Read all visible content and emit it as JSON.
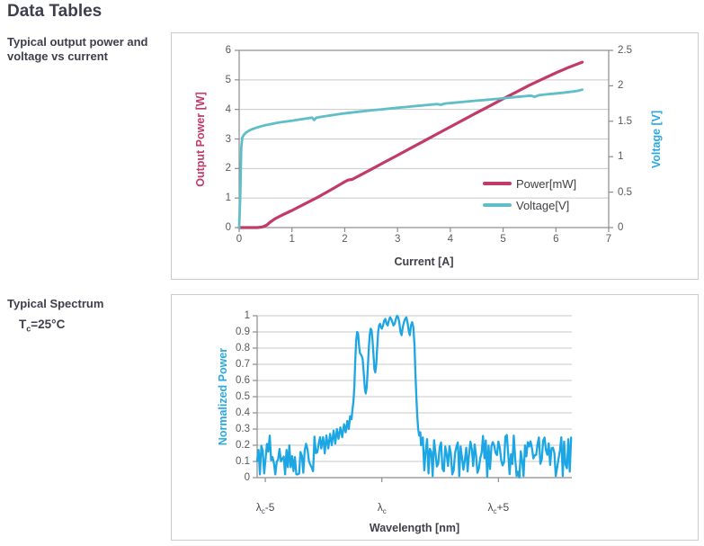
{
  "page": {
    "title": "Data Tables",
    "background": "#FFFFFF",
    "heading_color": "#3E3F4C"
  },
  "captions": {
    "chart1": "Typical output power and\nvoltage vs current",
    "chart2_title": "Typical Spectrum",
    "chart2_condition": {
      "base": "T",
      "sub": "c",
      "suffix": "=25°C"
    }
  },
  "colors": {
    "power_line": "#C23A68",
    "voltage_line": "#5FBEC7",
    "blue_axis": "#29A8E0",
    "spectrum_line": "#1CA6E3",
    "tick_text": "#595959",
    "dark_axis_text": "#3F4048",
    "gridline": "#C9C9C9",
    "axis_line": "#8C8C8C",
    "panel_border": "#C9CBCE"
  },
  "chart_data": [
    {
      "type": "line",
      "name": "output-power-and-voltage-vs-current",
      "x_axis": {
        "label": "Current [A]",
        "min": 0,
        "max": 7,
        "ticks": [
          "0",
          "1",
          "2",
          "3",
          "4",
          "5",
          "6",
          "7"
        ],
        "tick_values": [
          0,
          1,
          2,
          3,
          4,
          5,
          6,
          7
        ]
      },
      "y_left": {
        "label": "Output Power [W]",
        "min": 0,
        "max": 6,
        "ticks": [
          "0",
          "1",
          "2",
          "3",
          "4",
          "5",
          "6"
        ],
        "tick_values": [
          0,
          1,
          2,
          3,
          4,
          5,
          6
        ],
        "color": "#C23A68"
      },
      "y_right": {
        "label": "Voltage [V]",
        "min": 0,
        "max": 2.5,
        "ticks": [
          "0",
          "0.5",
          "1",
          "1.5",
          "2",
          "2.5"
        ],
        "tick_values": [
          0,
          0.5,
          1,
          1.5,
          2,
          2.5
        ],
        "color": "#29A8E0"
      },
      "grid": true,
      "legend_position": "inside-right-bottom",
      "legend": [
        {
          "label": "Power[mW]",
          "color": "#C23A68"
        },
        {
          "label": "Voltage[V]",
          "color": "#5FBEC7"
        }
      ],
      "series": [
        {
          "name": "Power[mW]",
          "axis": "left",
          "color": "#C23A68",
          "width": 3.2,
          "points": [
            [
              0,
              0
            ],
            [
              0.35,
              0
            ],
            [
              0.44,
              0.02
            ],
            [
              0.52,
              0.08
            ],
            [
              0.6,
              0.2
            ],
            [
              0.68,
              0.3
            ],
            [
              0.8,
              0.41
            ],
            [
              1,
              0.58
            ],
            [
              1.25,
              0.81
            ],
            [
              1.5,
              1.04
            ],
            [
              1.75,
              1.29
            ],
            [
              2,
              1.55
            ],
            [
              2.07,
              1.61
            ],
            [
              2.14,
              1.63
            ],
            [
              2.3,
              1.78
            ],
            [
              2.5,
              1.97
            ],
            [
              2.75,
              2.21
            ],
            [
              3,
              2.45
            ],
            [
              3.25,
              2.69
            ],
            [
              3.5,
              2.93
            ],
            [
              3.75,
              3.17
            ],
            [
              4,
              3.41
            ],
            [
              4.25,
              3.65
            ],
            [
              4.5,
              3.89
            ],
            [
              4.75,
              4.12
            ],
            [
              5,
              4.36
            ],
            [
              5.25,
              4.59
            ],
            [
              5.5,
              4.82
            ],
            [
              5.75,
              5.03
            ],
            [
              6,
              5.24
            ],
            [
              6.25,
              5.43
            ],
            [
              6.5,
              5.6
            ]
          ]
        },
        {
          "name": "Voltage[V]",
          "axis": "right",
          "color": "#5FBEC7",
          "width": 2.8,
          "points": [
            [
              0,
              0
            ],
            [
              0.02,
              0.45
            ],
            [
              0.04,
              1.12
            ],
            [
              0.06,
              1.27
            ],
            [
              0.09,
              1.31
            ],
            [
              0.13,
              1.34
            ],
            [
              0.18,
              1.365
            ],
            [
              0.25,
              1.39
            ],
            [
              0.33,
              1.41
            ],
            [
              0.42,
              1.43
            ],
            [
              0.5,
              1.445
            ],
            [
              0.6,
              1.46
            ],
            [
              0.7,
              1.475
            ],
            [
              0.8,
              1.487
            ],
            [
              0.9,
              1.498
            ],
            [
              1,
              1.508
            ],
            [
              1.1,
              1.52
            ],
            [
              1.2,
              1.53
            ],
            [
              1.3,
              1.542
            ],
            [
              1.38,
              1.552
            ],
            [
              1.42,
              1.518
            ],
            [
              1.46,
              1.548
            ],
            [
              1.55,
              1.562
            ],
            [
              1.65,
              1.574
            ],
            [
              1.75,
              1.585
            ],
            [
              1.85,
              1.595
            ],
            [
              1.95,
              1.606
            ],
            [
              2.1,
              1.62
            ],
            [
              2.25,
              1.633
            ],
            [
              2.4,
              1.645
            ],
            [
              2.55,
              1.657
            ],
            [
              2.7,
              1.668
            ],
            [
              2.85,
              1.679
            ],
            [
              3,
              1.69
            ],
            [
              3.15,
              1.701
            ],
            [
              3.3,
              1.712
            ],
            [
              3.45,
              1.722
            ],
            [
              3.6,
              1.732
            ],
            [
              3.75,
              1.742
            ],
            [
              3.82,
              1.732
            ],
            [
              3.9,
              1.75
            ],
            [
              4.05,
              1.76
            ],
            [
              4.2,
              1.77
            ],
            [
              4.35,
              1.78
            ],
            [
              4.5,
              1.79
            ],
            [
              4.65,
              1.8
            ],
            [
              4.8,
              1.81
            ],
            [
              4.95,
              1.82
            ],
            [
              5.1,
              1.832
            ],
            [
              5.25,
              1.843
            ],
            [
              5.4,
              1.853
            ],
            [
              5.52,
              1.862
            ],
            [
              5.6,
              1.845
            ],
            [
              5.68,
              1.868
            ],
            [
              5.8,
              1.878
            ],
            [
              5.95,
              1.888
            ],
            [
              6.1,
              1.9
            ],
            [
              6.25,
              1.912
            ],
            [
              6.4,
              1.928
            ],
            [
              6.5,
              1.945
            ]
          ]
        }
      ]
    },
    {
      "type": "line",
      "name": "typical-spectrum",
      "x_axis": {
        "label": "Wavelength [nm]",
        "min": -5.35,
        "max": 8.15,
        "ticks": [
          {
            "base": "λ",
            "sub": "c",
            "suffix": "-5",
            "value": -5
          },
          {
            "base": "λ",
            "sub": "c",
            "suffix": "",
            "value": 0
          },
          {
            "base": "λ",
            "sub": "c",
            "suffix": "+5",
            "value": 5
          }
        ]
      },
      "y_axis": {
        "label": "Normalized Power",
        "min": 0,
        "max": 1,
        "ticks": [
          "0",
          "0.1",
          "0.2",
          "0.3",
          "0.4",
          "0.5",
          "0.6",
          "0.7",
          "0.8",
          "0.9",
          "1"
        ],
        "tick_values": [
          0,
          0.1,
          0.2,
          0.3,
          0.4,
          0.5,
          0.6,
          0.7,
          0.8,
          0.9,
          1
        ],
        "color": "#29A8E0"
      },
      "grid": true,
      "series_color": "#1CA6E3",
      "series_width": 2.3,
      "envelope_points": [
        [
          -2.6,
          0.18
        ],
        [
          -2.52,
          0.25
        ],
        [
          -2.45,
          0.15
        ],
        [
          -2.38,
          0.26
        ],
        [
          -2.3,
          0.18
        ],
        [
          -2.22,
          0.27
        ],
        [
          -2.15,
          0.2
        ],
        [
          -2.07,
          0.29
        ],
        [
          -2,
          0.21
        ],
        [
          -1.93,
          0.3
        ],
        [
          -1.86,
          0.24
        ],
        [
          -1.78,
          0.31
        ],
        [
          -1.7,
          0.25
        ],
        [
          -1.62,
          0.33
        ],
        [
          -1.55,
          0.28
        ],
        [
          -1.48,
          0.35
        ],
        [
          -1.42,
          0.3
        ],
        [
          -1.36,
          0.38
        ],
        [
          -1.3,
          0.36
        ],
        [
          -1.26,
          0.42
        ],
        [
          -1.22,
          0.47
        ],
        [
          -1.18,
          0.56
        ],
        [
          -1.14,
          0.72
        ],
        [
          -1.1,
          0.85
        ],
        [
          -1.06,
          0.9
        ],
        [
          -1.02,
          0.89
        ],
        [
          -0.98,
          0.82
        ],
        [
          -0.94,
          0.77
        ],
        [
          -0.9,
          0.76
        ],
        [
          -0.86,
          0.75
        ],
        [
          -0.82,
          0.73
        ],
        [
          -0.78,
          0.65
        ],
        [
          -0.73,
          0.55
        ],
        [
          -0.69,
          0.52
        ],
        [
          -0.65,
          0.56
        ],
        [
          -0.6,
          0.68
        ],
        [
          -0.56,
          0.8
        ],
        [
          -0.52,
          0.88
        ],
        [
          -0.48,
          0.92
        ],
        [
          -0.44,
          0.91
        ],
        [
          -0.4,
          0.85
        ],
        [
          -0.36,
          0.76
        ],
        [
          -0.32,
          0.67
        ],
        [
          -0.28,
          0.65
        ],
        [
          -0.24,
          0.7
        ],
        [
          -0.2,
          0.8
        ],
        [
          -0.16,
          0.9
        ],
        [
          -0.12,
          0.94
        ],
        [
          -0.08,
          0.95
        ],
        [
          -0.04,
          0.93
        ],
        [
          0,
          0.92
        ],
        [
          0.05,
          0.94
        ],
        [
          0.1,
          0.97
        ],
        [
          0.15,
          0.98
        ],
        [
          0.2,
          0.95
        ],
        [
          0.25,
          0.94
        ],
        [
          0.3,
          0.97
        ],
        [
          0.35,
          0.99
        ],
        [
          0.4,
          0.98
        ],
        [
          0.45,
          0.96
        ],
        [
          0.5,
          0.94
        ],
        [
          0.55,
          0.95
        ],
        [
          0.6,
          0.98
        ],
        [
          0.65,
          1
        ],
        [
          0.7,
          0.99
        ],
        [
          0.75,
          0.96
        ],
        [
          0.8,
          0.9
        ],
        [
          0.85,
          0.88
        ],
        [
          0.9,
          0.93
        ],
        [
          0.95,
          0.96
        ],
        [
          1,
          0.98
        ],
        [
          1.05,
          0.99
        ],
        [
          1.1,
          0.96
        ],
        [
          1.15,
          0.91
        ],
        [
          1.2,
          0.88
        ],
        [
          1.25,
          0.94
        ],
        [
          1.3,
          0.96
        ],
        [
          1.35,
          0.93
        ],
        [
          1.4,
          0.82
        ],
        [
          1.44,
          0.65
        ],
        [
          1.48,
          0.5
        ],
        [
          1.52,
          0.38
        ],
        [
          1.56,
          0.3
        ],
        [
          1.6,
          0.26
        ],
        [
          1.65,
          0.28
        ],
        [
          1.68,
          0.2
        ],
        [
          1.72,
          0.24
        ]
      ],
      "noise": {
        "seed": 12,
        "regions": [
          {
            "x0": -5.35,
            "x1": -2.64,
            "y_min": 0.01,
            "y_max": 0.26,
            "step": 0.06
          },
          {
            "x0": 1.76,
            "x1": 8.15,
            "y_min": 0.0,
            "y_max": 0.27,
            "step": 0.06
          }
        ]
      }
    }
  ]
}
